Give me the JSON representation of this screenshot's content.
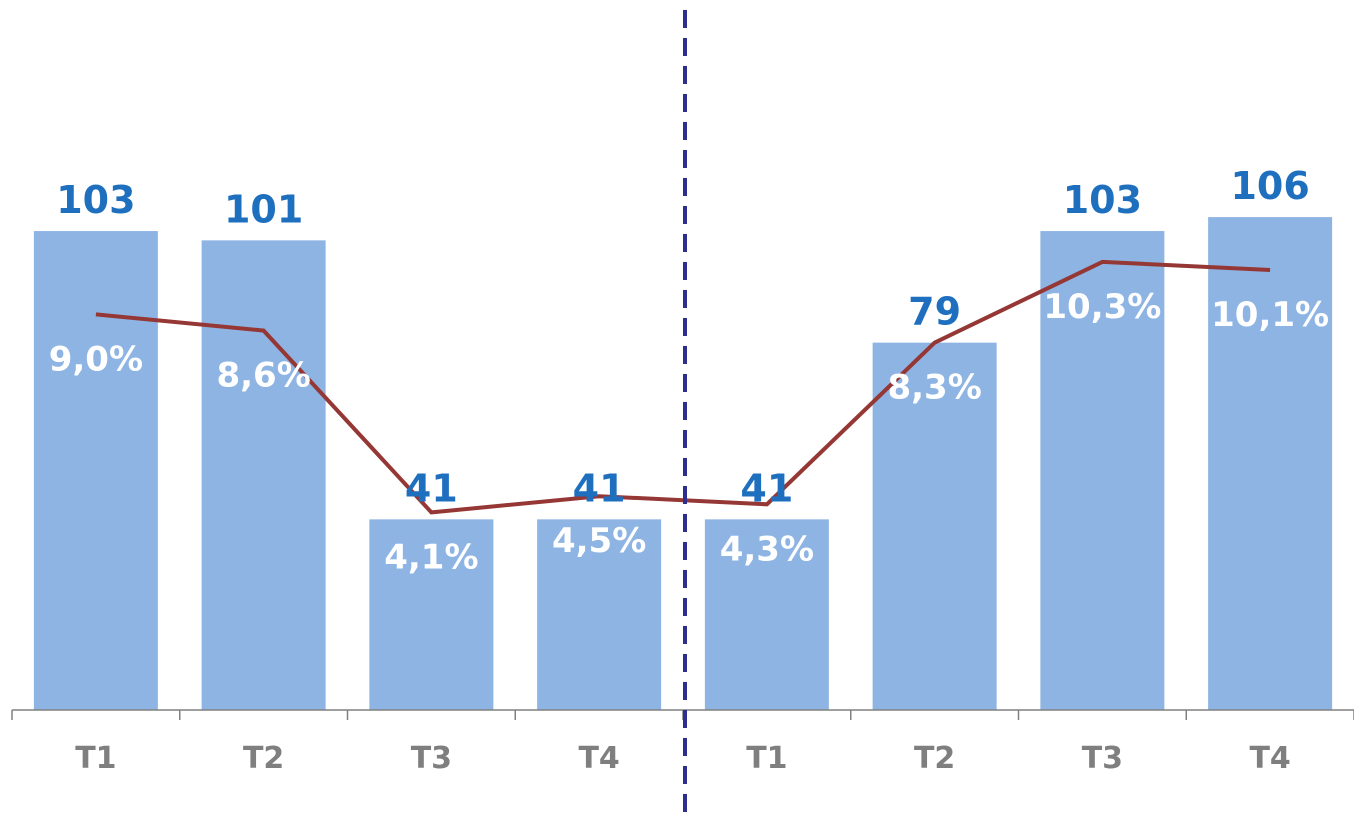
{
  "chart_data": {
    "type": "bar",
    "categories": [
      "T1",
      "T2",
      "T3",
      "T4",
      "T1",
      "T2",
      "T3",
      "T4"
    ],
    "series": [
      {
        "type": "bar",
        "values": [
          103,
          101,
          41,
          41,
          41,
          79,
          103,
          106
        ],
        "labels": [
          "103",
          "101",
          "41",
          "41",
          "41",
          "79",
          "103",
          "106"
        ]
      },
      {
        "type": "line",
        "values": [
          9.0,
          8.6,
          4.1,
          4.5,
          4.3,
          8.3,
          10.3,
          10.1
        ],
        "labels": [
          "9,0%",
          "8,6%",
          "4,1%",
          "4,5%",
          "4,3%",
          "8,3%",
          "10,3%",
          "10,1%"
        ]
      }
    ],
    "divider_after_index": 3,
    "title": "",
    "xlabel": "",
    "ylabel": "",
    "ylim_bar": [
      0,
      140
    ],
    "ylim_line": [
      0,
      16.6
    ],
    "grid": false,
    "legend": "none"
  },
  "colors": {
    "bar_fill": "#8eb4e3",
    "bar_label": "#1f6fbf",
    "pct_label": "#ffffff",
    "line": "#953735",
    "axis": "#808080",
    "tick_label": "#7f7f7f",
    "divider": "#2e2e8f"
  }
}
